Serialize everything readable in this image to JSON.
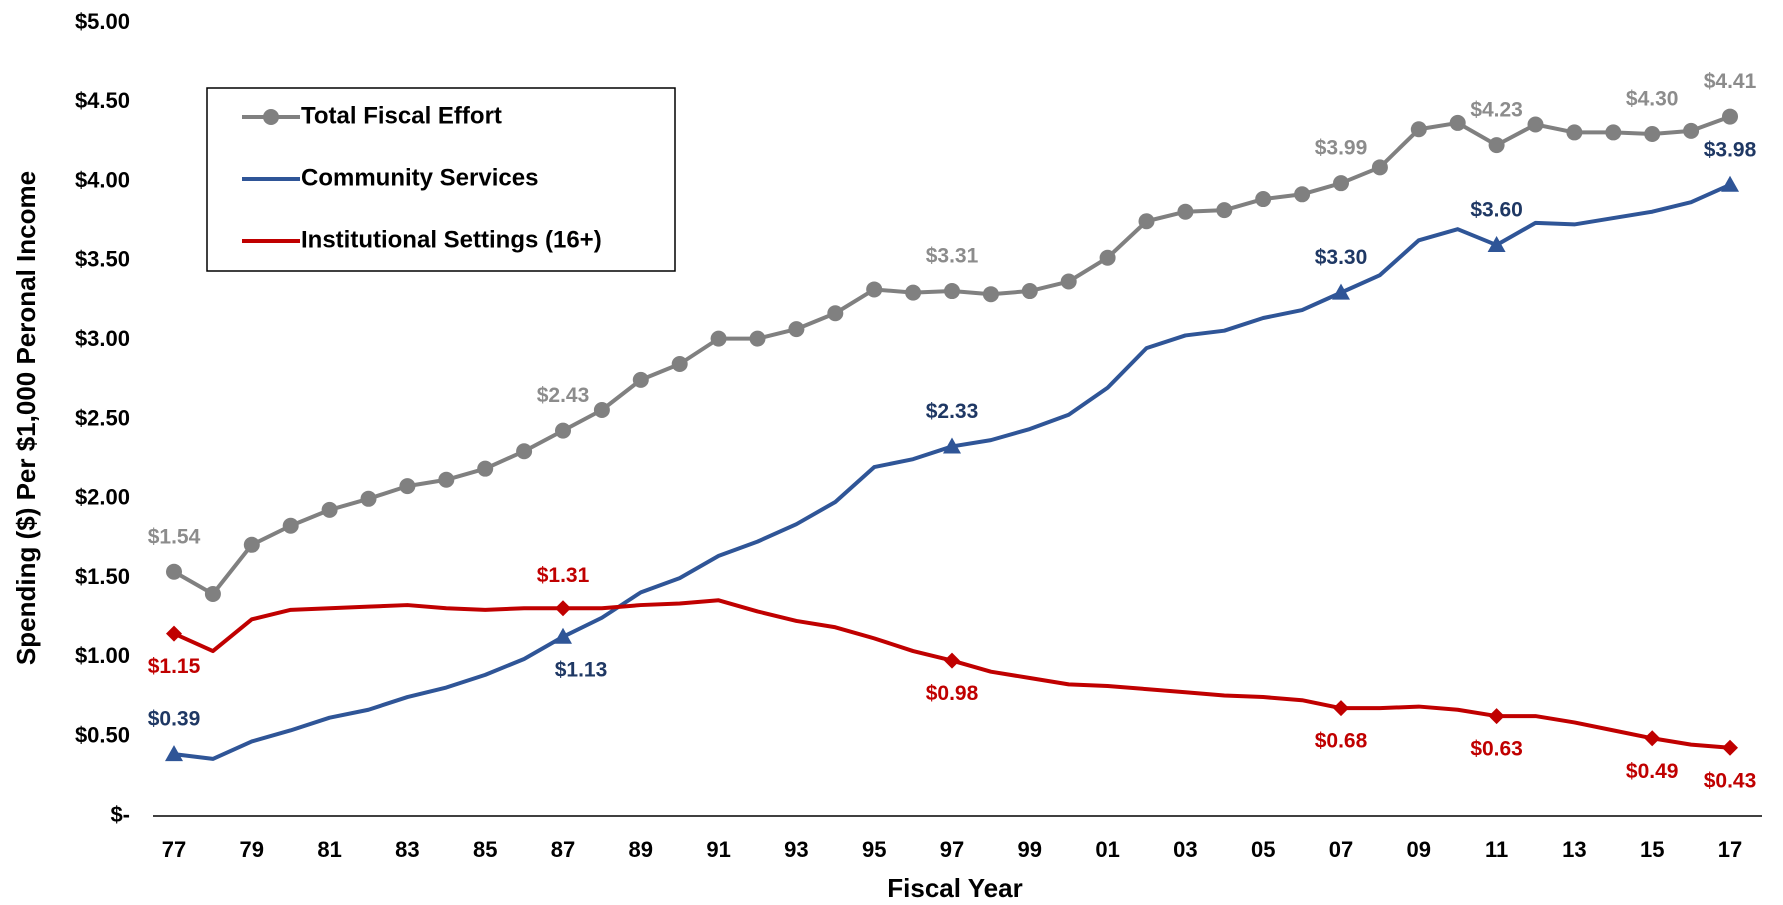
{
  "chart_data": {
    "type": "line",
    "x_label": "Fiscal Year",
    "y_label": "Spending ($) Per $1,000 Peronal Income",
    "categories": [
      "77",
      null,
      "79",
      null,
      "81",
      null,
      "83",
      null,
      "85",
      null,
      "87",
      null,
      "89",
      null,
      "91",
      null,
      "93",
      null,
      "95",
      null,
      "97",
      null,
      "99",
      null,
      "01",
      null,
      "03",
      null,
      "05",
      null,
      "07",
      null,
      "09",
      null,
      "11",
      null,
      "13",
      null,
      "15",
      null,
      "17"
    ],
    "ylim": [
      0,
      5
    ],
    "yticks": [
      {
        "value": 0,
        "label": "$-"
      },
      {
        "value": 0.5,
        "label": "$0.50"
      },
      {
        "value": 1,
        "label": "$1.00"
      },
      {
        "value": 1.5,
        "label": "$1.50"
      },
      {
        "value": 2,
        "label": "$2.00"
      },
      {
        "value": 2.5,
        "label": "$2.50"
      },
      {
        "value": 3,
        "label": "$3.00"
      },
      {
        "value": 3.5,
        "label": "$3.50"
      },
      {
        "value": 4,
        "label": "$4.00"
      },
      {
        "value": 4.5,
        "label": "$4.50"
      },
      {
        "value": 5,
        "label": "$5.00"
      }
    ],
    "legend": "top-left",
    "series": [
      {
        "name": "Total Fiscal Effort",
        "color": "#808080",
        "label_color": "#8c8c8c",
        "marker": "circle",
        "values": [
          1.54,
          1.4,
          1.71,
          1.83,
          1.93,
          2.0,
          2.08,
          2.12,
          2.19,
          2.3,
          2.43,
          2.56,
          2.75,
          2.85,
          3.01,
          3.01,
          3.07,
          3.17,
          3.32,
          3.3,
          3.31,
          3.29,
          3.31,
          3.37,
          3.52,
          3.75,
          3.81,
          3.82,
          3.89,
          3.92,
          3.99,
          4.09,
          4.33,
          4.37,
          4.23,
          4.36,
          4.31,
          4.31,
          4.3,
          4.32,
          4.41
        ],
        "value_labels": [
          "$1.54",
          null,
          null,
          null,
          null,
          null,
          null,
          null,
          null,
          null,
          "$2.43",
          null,
          null,
          null,
          null,
          null,
          null,
          null,
          null,
          null,
          "$3.31",
          null,
          null,
          null,
          null,
          null,
          null,
          null,
          null,
          null,
          "$3.99",
          null,
          null,
          null,
          "$4.23",
          null,
          null,
          null,
          "$4.30",
          null,
          "$4.41"
        ]
      },
      {
        "name": "Community Services",
        "color": "#2f5597",
        "label_color": "#1f3864",
        "marker": "triangle",
        "values": [
          0.39,
          0.36,
          0.47,
          0.54,
          0.62,
          0.67,
          0.75,
          0.81,
          0.89,
          0.99,
          1.13,
          1.25,
          1.41,
          1.5,
          1.64,
          1.73,
          1.84,
          1.98,
          2.2,
          2.25,
          2.33,
          2.37,
          2.44,
          2.53,
          2.7,
          2.95,
          3.03,
          3.06,
          3.14,
          3.19,
          3.3,
          3.41,
          3.63,
          3.7,
          3.6,
          3.74,
          3.73,
          3.77,
          3.81,
          3.87,
          3.98
        ],
        "value_labels": [
          "$0.39",
          null,
          null,
          null,
          null,
          null,
          null,
          null,
          null,
          null,
          "$1.13",
          null,
          null,
          null,
          null,
          null,
          null,
          null,
          null,
          null,
          "$2.33",
          null,
          null,
          null,
          null,
          null,
          null,
          null,
          null,
          null,
          "$3.30",
          null,
          null,
          null,
          "$3.60",
          null,
          null,
          null,
          null,
          null,
          "$3.98"
        ]
      },
      {
        "name": "Institutional Settings (16+)",
        "color": "#c00000",
        "label_color": "#c00000",
        "marker": "diamond",
        "values": [
          1.15,
          1.04,
          1.24,
          1.3,
          1.31,
          1.32,
          1.33,
          1.31,
          1.3,
          1.31,
          1.31,
          1.31,
          1.33,
          1.34,
          1.36,
          1.29,
          1.23,
          1.19,
          1.12,
          1.04,
          0.98,
          0.91,
          0.87,
          0.83,
          0.82,
          0.8,
          0.78,
          0.76,
          0.75,
          0.73,
          0.68,
          0.68,
          0.69,
          0.67,
          0.63,
          0.63,
          0.59,
          0.54,
          0.49,
          0.45,
          0.43
        ],
        "value_labels": [
          "$1.15",
          null,
          null,
          null,
          null,
          null,
          null,
          null,
          null,
          null,
          "$1.31",
          null,
          null,
          null,
          null,
          null,
          null,
          null,
          null,
          null,
          "$0.98",
          null,
          null,
          null,
          null,
          null,
          null,
          null,
          null,
          null,
          "$0.68",
          null,
          null,
          null,
          "$0.63",
          null,
          null,
          null,
          "$0.49",
          null,
          "$0.43"
        ]
      }
    ]
  }
}
